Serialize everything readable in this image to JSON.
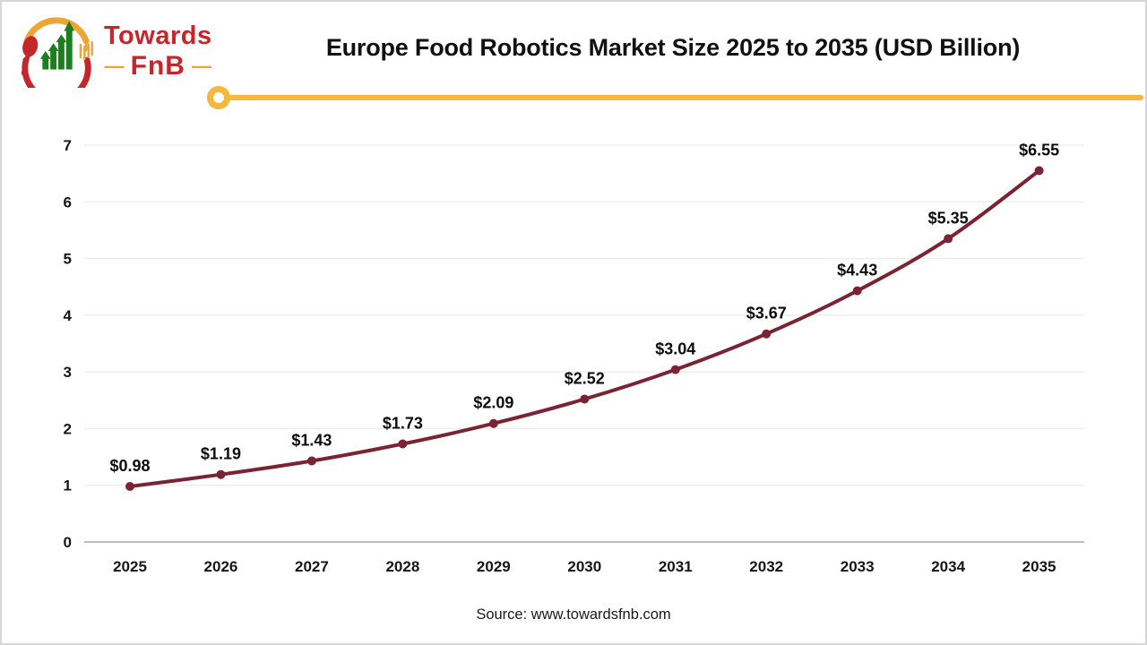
{
  "logo": {
    "brand_top": "Towards",
    "brand_bottom": "FnB",
    "dash": "—",
    "colors": {
      "red": "#c4262b",
      "yellow": "#f0a431",
      "green": "#1e7d1e"
    }
  },
  "header": {
    "title": "Europe Food Robotics Market Size 2025 to 2035 (USD Billion)",
    "divider_color": "#f5b83c"
  },
  "chart_data": {
    "type": "line",
    "title": "Europe Food Robotics Market Size 2025 to 2035 (USD Billion)",
    "categories": [
      "2025",
      "2026",
      "2027",
      "2028",
      "2029",
      "2030",
      "2031",
      "2032",
      "2033",
      "2034",
      "2035"
    ],
    "values": [
      0.98,
      1.19,
      1.43,
      1.73,
      2.09,
      2.52,
      3.04,
      3.67,
      4.43,
      5.35,
      6.55
    ],
    "data_labels": [
      "$0.98",
      "$1.19",
      "$1.43",
      "$1.73",
      "$2.09",
      "$2.52",
      "$3.04",
      "$3.67",
      "$4.43",
      "$5.35",
      "$6.55"
    ],
    "unit": "USD Billion",
    "xlabel": "",
    "ylabel": "",
    "ylim": [
      0,
      7
    ],
    "ytick_interval": 1,
    "yticks": [
      0,
      1,
      2,
      3,
      4,
      5,
      6,
      7
    ],
    "grid": true,
    "legend": "none",
    "line_color": "#7a2433",
    "grid_color": "#e8e8e8",
    "axis_color": "#bfbfbf",
    "marker": "circle",
    "smooth": true
  },
  "footer": {
    "source": "Source: www.towardsfnb.com"
  }
}
